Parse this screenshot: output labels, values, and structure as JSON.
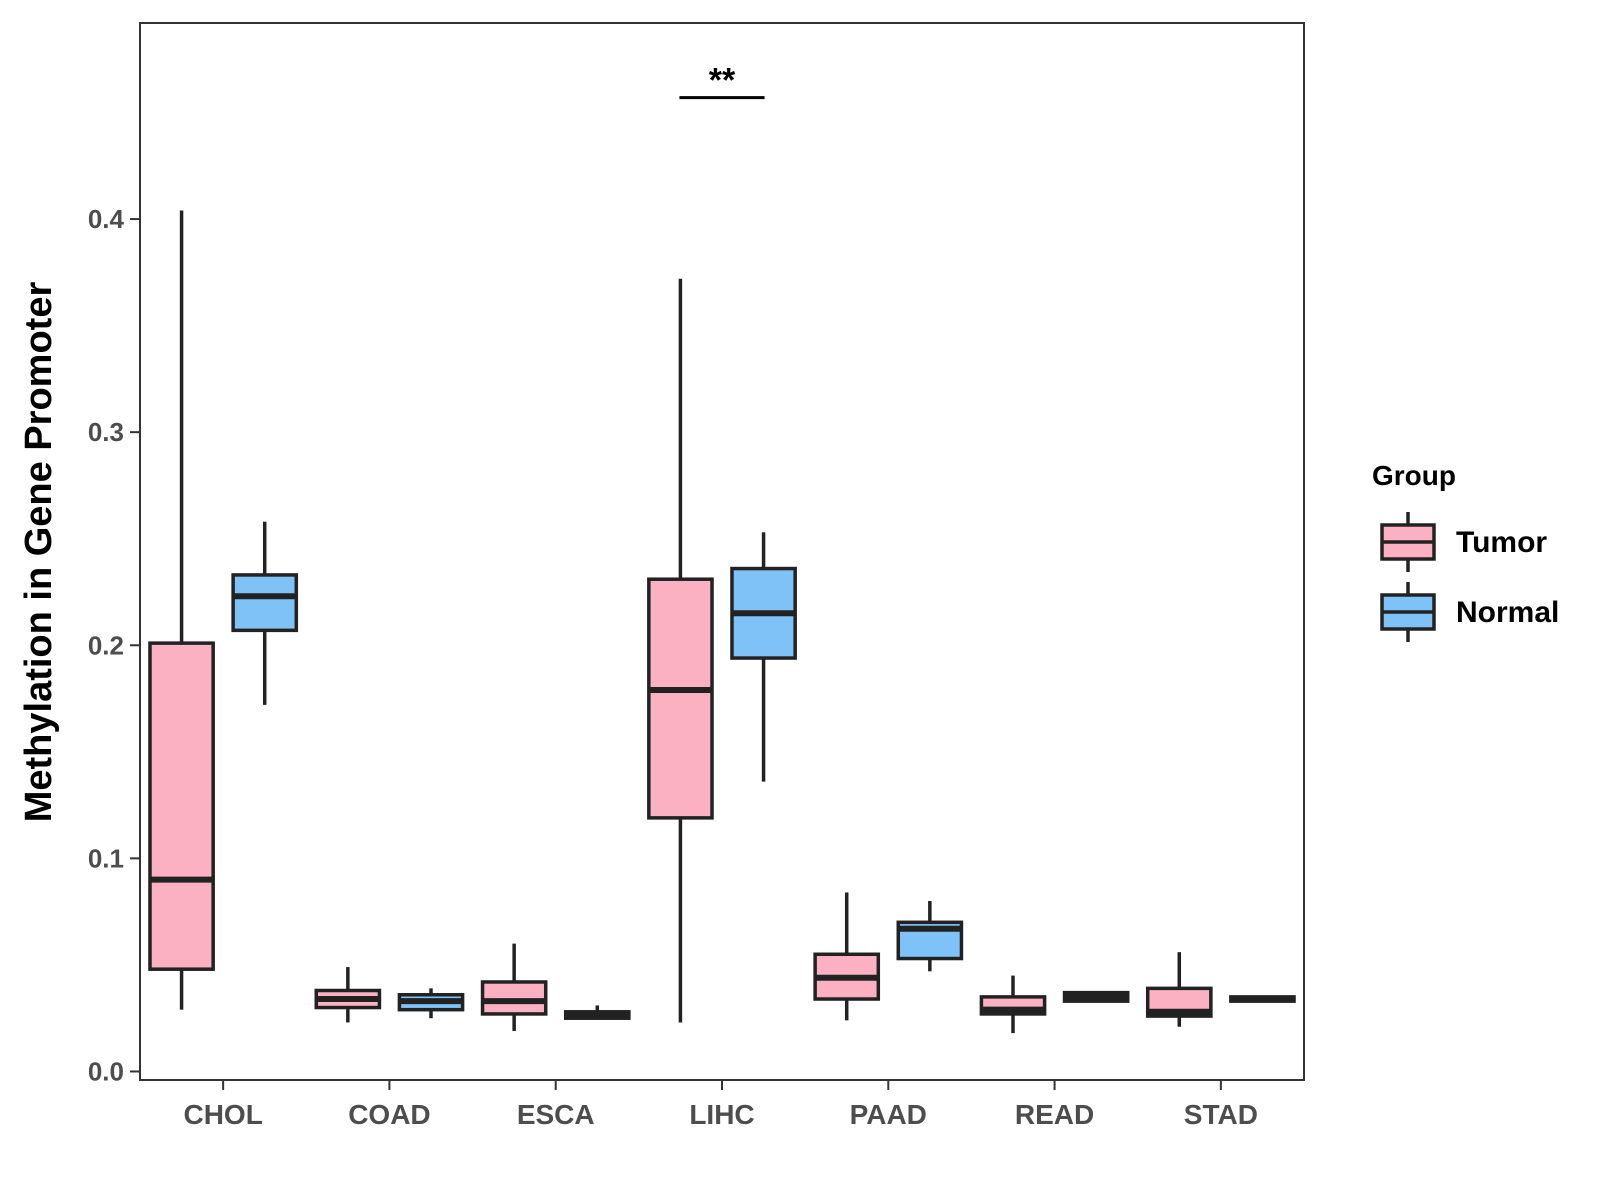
{
  "chart_data": {
    "type": "boxplot",
    "title": "",
    "xlabel": "",
    "ylabel": "Methylation in Gene Promoter",
    "ylim": [
      -0.004,
      0.492
    ],
    "y_ticks": [
      0.0,
      0.1,
      0.2,
      0.3,
      0.4
    ],
    "y_tick_labels": [
      "0.0",
      "0.1",
      "0.2",
      "0.3",
      "0.4"
    ],
    "categories": [
      "CHOL",
      "COAD",
      "ESCA",
      "LIHC",
      "PAAD",
      "READ",
      "STAD"
    ],
    "legend": {
      "title": "Group",
      "position": "right",
      "entries": [
        {
          "name": "Tumor",
          "color": "#fbb1c2"
        },
        {
          "name": "Normal",
          "color": "#7ec2f7"
        }
      ]
    },
    "series": [
      {
        "name": "Tumor",
        "color": "#fbb1c2",
        "boxes": [
          {
            "category": "CHOL",
            "min": 0.029,
            "q1": 0.048,
            "median": 0.09,
            "q3": 0.201,
            "max": 0.404
          },
          {
            "category": "COAD",
            "min": 0.023,
            "q1": 0.03,
            "median": 0.034,
            "q3": 0.038,
            "max": 0.049
          },
          {
            "category": "ESCA",
            "min": 0.019,
            "q1": 0.027,
            "median": 0.033,
            "q3": 0.042,
            "max": 0.06
          },
          {
            "category": "LIHC",
            "min": 0.023,
            "q1": 0.119,
            "median": 0.179,
            "q3": 0.231,
            "max": 0.372
          },
          {
            "category": "PAAD",
            "min": 0.024,
            "q1": 0.034,
            "median": 0.044,
            "q3": 0.055,
            "max": 0.084
          },
          {
            "category": "READ",
            "min": 0.018,
            "q1": 0.027,
            "median": 0.029,
            "q3": 0.035,
            "max": 0.045
          },
          {
            "category": "STAD",
            "min": 0.021,
            "q1": 0.026,
            "median": 0.028,
            "q3": 0.039,
            "max": 0.056
          }
        ]
      },
      {
        "name": "Normal",
        "color": "#7ec2f7",
        "boxes": [
          {
            "category": "CHOL",
            "min": 0.172,
            "q1": 0.207,
            "median": 0.223,
            "q3": 0.233,
            "max": 0.258
          },
          {
            "category": "COAD",
            "min": 0.025,
            "q1": 0.029,
            "median": 0.033,
            "q3": 0.036,
            "max": 0.039
          },
          {
            "category": "ESCA",
            "min": 0.025,
            "q1": 0.025,
            "median": 0.026,
            "q3": 0.028,
            "max": 0.031
          },
          {
            "category": "LIHC",
            "min": 0.136,
            "q1": 0.194,
            "median": 0.215,
            "q3": 0.236,
            "max": 0.253
          },
          {
            "category": "PAAD",
            "min": 0.047,
            "q1": 0.053,
            "median": 0.067,
            "q3": 0.07,
            "max": 0.08
          },
          {
            "category": "READ",
            "min": 0.033,
            "q1": 0.033,
            "median": 0.035,
            "q3": 0.037,
            "max": 0.037
          },
          {
            "category": "STAD",
            "min": 0.033,
            "q1": 0.033,
            "median": 0.034,
            "q3": 0.035,
            "max": 0.035
          }
        ]
      }
    ],
    "annotations": [
      {
        "category": "LIHC",
        "label": "**",
        "y": 0.457
      }
    ]
  }
}
